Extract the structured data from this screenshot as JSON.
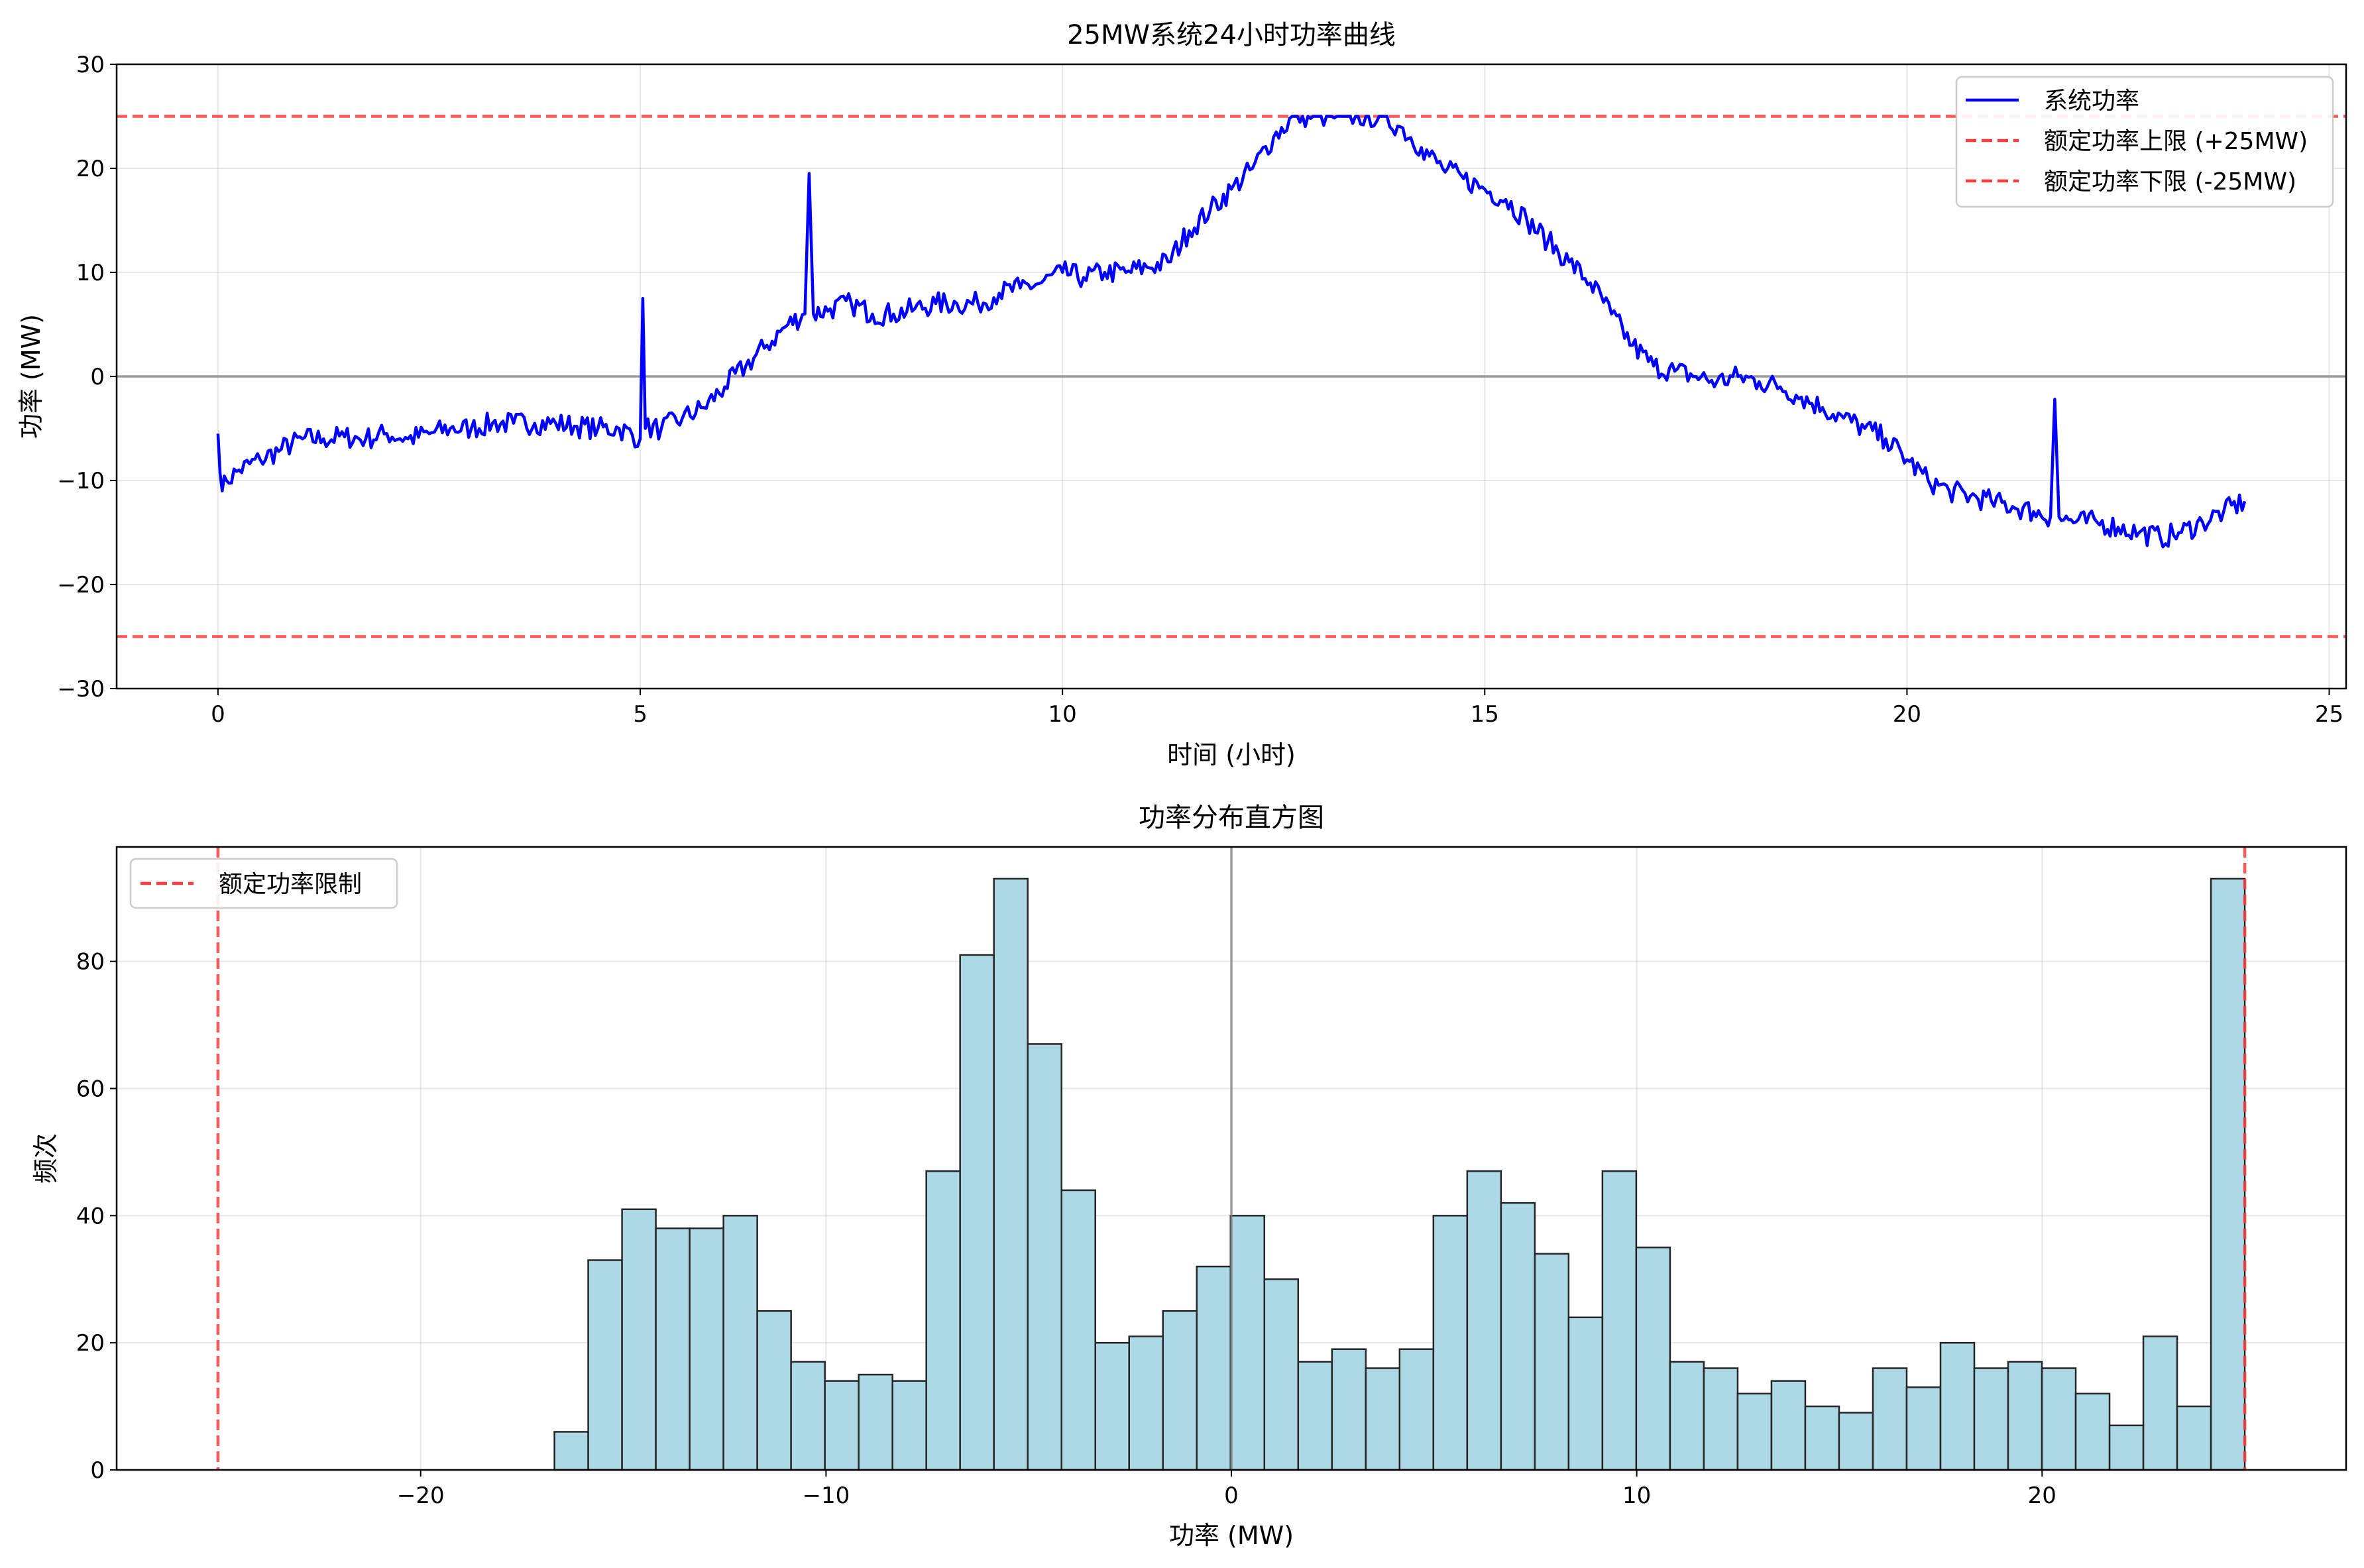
{
  "chart_data": [
    {
      "type": "line",
      "title": "25MW系统24小时功率曲线",
      "xlabel": "时间 (小时)",
      "ylabel": "功率 (MW)",
      "xlim": [
        -1.2,
        25.2
      ],
      "ylim": [
        -30,
        30
      ],
      "xticks": [
        0,
        5,
        10,
        15,
        20,
        25
      ],
      "yticks": [
        -30,
        -20,
        -10,
        0,
        10,
        20,
        30
      ],
      "grid": true,
      "legend_position": "top-right",
      "legend": [
        "系统功率",
        "额定功率上限 (+25MW)",
        "额定功率下限 (-25MW)"
      ],
      "series": [
        {
          "name": "系统功率",
          "color": "#0000ff",
          "x": [
            0,
            0.05,
            0.1,
            0.25,
            0.5,
            0.75,
            1,
            1.25,
            1.5,
            1.75,
            2,
            2.25,
            2.5,
            2.75,
            3,
            3.25,
            3.5,
            3.75,
            4,
            4.25,
            4.5,
            4.75,
            5,
            5.03,
            5.06,
            5.25,
            5.5,
            5.75,
            6,
            6.25,
            6.5,
            6.75,
            6.95,
            7.0,
            7.05,
            7.25,
            7.5,
            7.75,
            8,
            8.25,
            8.5,
            8.75,
            9,
            9.25,
            9.5,
            9.75,
            10,
            10.25,
            10.5,
            10.75,
            11,
            11.25,
            11.5,
            11.75,
            12,
            12.25,
            12.5,
            12.75,
            13,
            13.25,
            13.5,
            13.75,
            14,
            14.25,
            14.5,
            14.75,
            15,
            15.25,
            15.5,
            15.75,
            16,
            16.25,
            16.5,
            16.75,
            17,
            17.25,
            17.5,
            17.75,
            18,
            18.25,
            18.5,
            18.75,
            19,
            19.25,
            19.5,
            19.75,
            20,
            20.25,
            20.5,
            20.75,
            21,
            21.25,
            21.5,
            21.7,
            21.75,
            21.8,
            22,
            22.25,
            22.5,
            22.75,
            23,
            23.25,
            23.5,
            23.75,
            24
          ],
          "y": [
            -5.5,
            -11,
            -10,
            -9,
            -8,
            -7,
            -6,
            -6,
            -5.8,
            -6,
            -5.5,
            -6,
            -5.5,
            -5,
            -5,
            -4.5,
            -4.5,
            -4.5,
            -4.5,
            -4.8,
            -5,
            -5,
            -6,
            7.5,
            -5,
            -5,
            -4,
            -3,
            -1,
            1,
            3,
            5,
            6,
            19.5,
            6,
            6.5,
            7,
            6,
            6,
            6.5,
            7,
            7,
            7,
            8,
            8.5,
            9,
            10,
            9.5,
            10,
            10,
            10.5,
            11,
            14,
            16,
            18,
            20,
            23,
            25,
            25,
            25,
            25,
            25,
            24,
            22,
            20,
            19,
            18,
            17,
            15,
            13,
            11,
            9,
            6,
            3,
            1,
            0.5,
            0,
            -0.5,
            0,
            -0.5,
            -1,
            -2,
            -3,
            -4,
            -5,
            -6,
            -8,
            -10,
            -11,
            -11.5,
            -12,
            -12.5,
            -13,
            -13.5,
            -2.2,
            -13.5,
            -14,
            -14,
            -14.5,
            -15,
            -15.5,
            -15,
            -14,
            -13,
            -12
          ]
        }
      ],
      "reference_lines": [
        {
          "orientation": "horizontal",
          "y": 25,
          "color": "#ff3b3b",
          "style": "dashed",
          "legend": "额定功率上限 (+25MW)"
        },
        {
          "orientation": "horizontal",
          "y": -25,
          "color": "#ff3b3b",
          "style": "dashed",
          "legend": "额定功率下限 (-25MW)"
        },
        {
          "orientation": "horizontal",
          "y": 0,
          "color": "#808080",
          "style": "solid"
        }
      ]
    },
    {
      "type": "bar",
      "subtype": "histogram",
      "title": "功率分布直方图",
      "xlabel": "功率 (MW)",
      "ylabel": "频次",
      "xlim": [
        -27.5,
        27.5
      ],
      "ylim": [
        0,
        98
      ],
      "xticks": [
        -20,
        -10,
        0,
        10,
        20
      ],
      "yticks": [
        0,
        20,
        40,
        60,
        80
      ],
      "grid": true,
      "legend_position": "top-left",
      "legend": [
        "额定功率限制"
      ],
      "bar_color": "#add8e6",
      "edge_color": "#262626",
      "bin_start": -16.7,
      "bin_width": 0.834,
      "counts": [
        6,
        33,
        41,
        38,
        38,
        40,
        25,
        17,
        14,
        15,
        14,
        47,
        81,
        93,
        67,
        44,
        20,
        21,
        25,
        32,
        40,
        30,
        17,
        19,
        16,
        19,
        40,
        47,
        42,
        34,
        24,
        47,
        35,
        17,
        16,
        12,
        14,
        10,
        9,
        16,
        13,
        20,
        16,
        17,
        16,
        12,
        7,
        21,
        10,
        93
      ],
      "reference_lines": [
        {
          "orientation": "vertical",
          "x": -25,
          "color": "#ff3b3b",
          "style": "dashed",
          "legend": "额定功率限制"
        },
        {
          "orientation": "vertical",
          "x": 25,
          "color": "#ff3b3b",
          "style": "dashed"
        },
        {
          "orientation": "vertical",
          "x": 0,
          "color": "#808080",
          "style": "solid"
        }
      ]
    }
  ]
}
